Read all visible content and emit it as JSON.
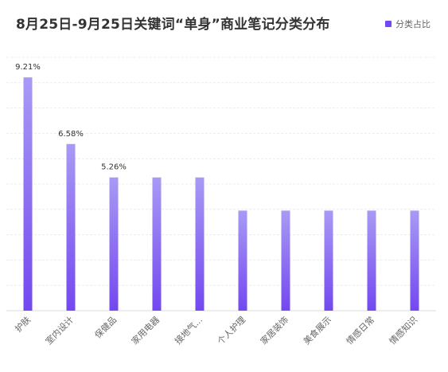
{
  "colors": {
    "bar_top": "#a99af5",
    "bar_bottom": "#7348f0",
    "grid": "#ececec",
    "label": "#333333",
    "tick": "#666666"
  },
  "chart_data": {
    "type": "bar",
    "title": "8月25日-9月25日关键词“单身”商业笔记分类分布",
    "legend": {
      "position": "top-right",
      "series_name": "分类占比"
    },
    "categories": [
      "护肤",
      "室内设计",
      "保健品",
      "家用电器",
      "接地气...",
      "个人护理",
      "家居装饰",
      "美食展示",
      "情感日常",
      "情感知识"
    ],
    "series": [
      {
        "name": "分类占比",
        "values": [
          9.21,
          6.58,
          5.26,
          5.26,
          5.26,
          3.95,
          3.95,
          3.95,
          3.95,
          3.95
        ],
        "data_labels": [
          "9.21%",
          "6.58%",
          "5.26%",
          null,
          null,
          null,
          null,
          null,
          null,
          null
        ]
      }
    ],
    "ylim": [
      0,
      10
    ],
    "grid": true
  }
}
